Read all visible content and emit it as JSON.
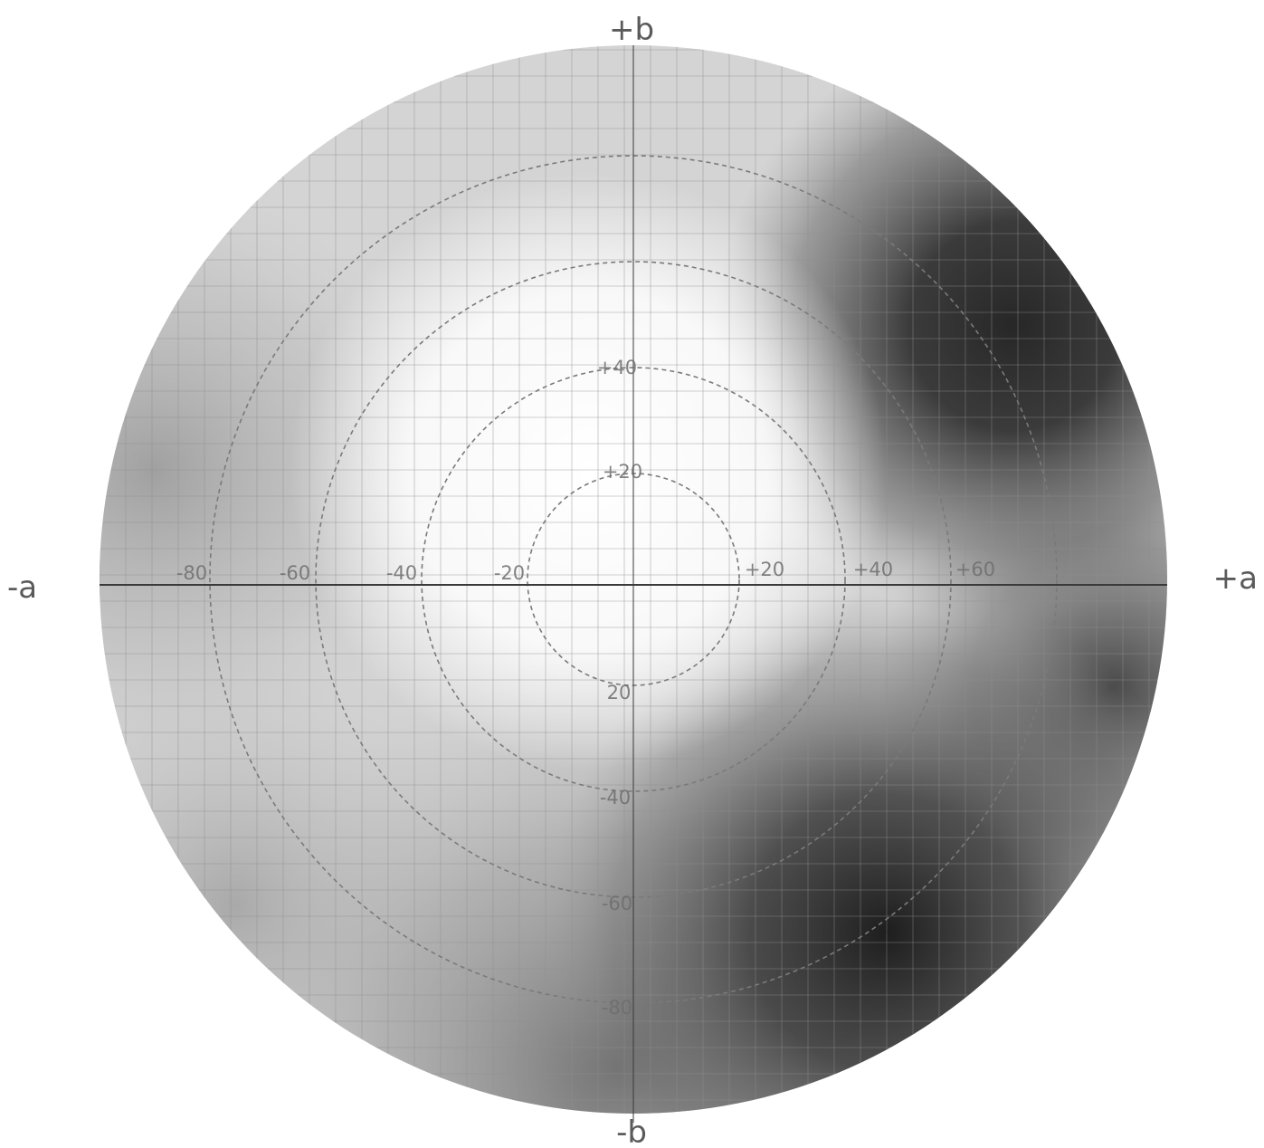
{
  "axes": {
    "plus_b": "+b",
    "minus_b": "-b",
    "minus_a": "-a",
    "plus_a": "+a"
  },
  "tick_labels": {
    "a_negative": [
      "-80",
      "-60",
      "-40",
      "-20"
    ],
    "a_positive": [
      "+20",
      "+40",
      "+60"
    ],
    "b_positive": [
      "+20",
      "+40"
    ],
    "b_negative": [
      "20",
      "-40",
      "-60",
      "-80"
    ]
  },
  "rings": [
    20,
    40,
    60,
    80
  ],
  "colors": {
    "background": "#ffffff",
    "dark_region": "#2a2a2a",
    "grid": "#8f8f8f",
    "ring": "#7a7a7a"
  }
}
